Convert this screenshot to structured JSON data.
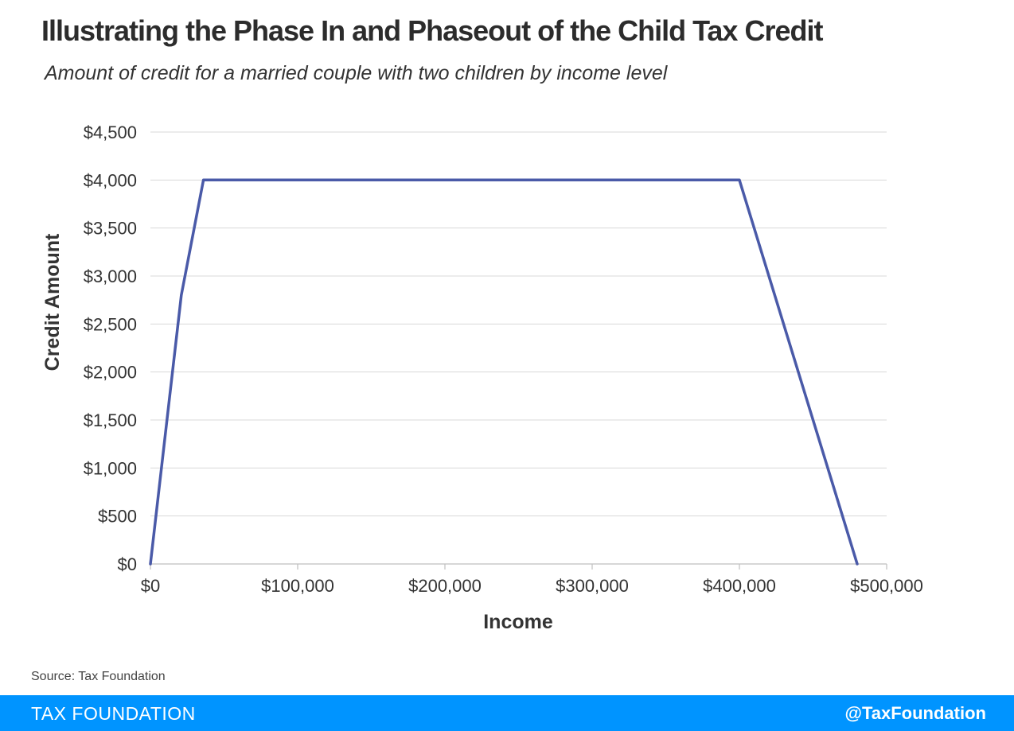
{
  "header": {
    "title": "Illustrating the Phase In and Phaseout of the Child Tax Credit",
    "subtitle": "Amount of credit for a married couple with two children by income level"
  },
  "chart_data": {
    "type": "line",
    "xlabel": "Income",
    "ylabel": "Credit Amount",
    "xlim": [
      0,
      500000
    ],
    "ylim": [
      0,
      4500
    ],
    "x_ticks": [
      0,
      100000,
      200000,
      300000,
      400000,
      500000
    ],
    "x_tick_labels": [
      "$0",
      "$100,000",
      "$200,000",
      "$300,000",
      "$400,000",
      "$500,000"
    ],
    "y_ticks": [
      0,
      500,
      1000,
      1500,
      2000,
      2500,
      3000,
      3500,
      4000,
      4500
    ],
    "y_tick_labels": [
      "$0",
      "$500",
      "$1,000",
      "$1,500",
      "$2,000",
      "$2,500",
      "$3,000",
      "$3,500",
      "$4,000",
      "$4,500"
    ],
    "grid": true,
    "series": [
      {
        "color": "#4a5aa8",
        "points": [
          {
            "x": 0,
            "y": 0
          },
          {
            "x": 21000,
            "y": 2800
          },
          {
            "x": 36000,
            "y": 4000
          },
          {
            "x": 400000,
            "y": 4000
          },
          {
            "x": 480000,
            "y": 0
          }
        ]
      }
    ]
  },
  "source": "Source: Tax Foundation",
  "footer": {
    "brand": "TAX FOUNDATION",
    "handle": "@TaxFoundation",
    "background_color": "#0094ff"
  }
}
